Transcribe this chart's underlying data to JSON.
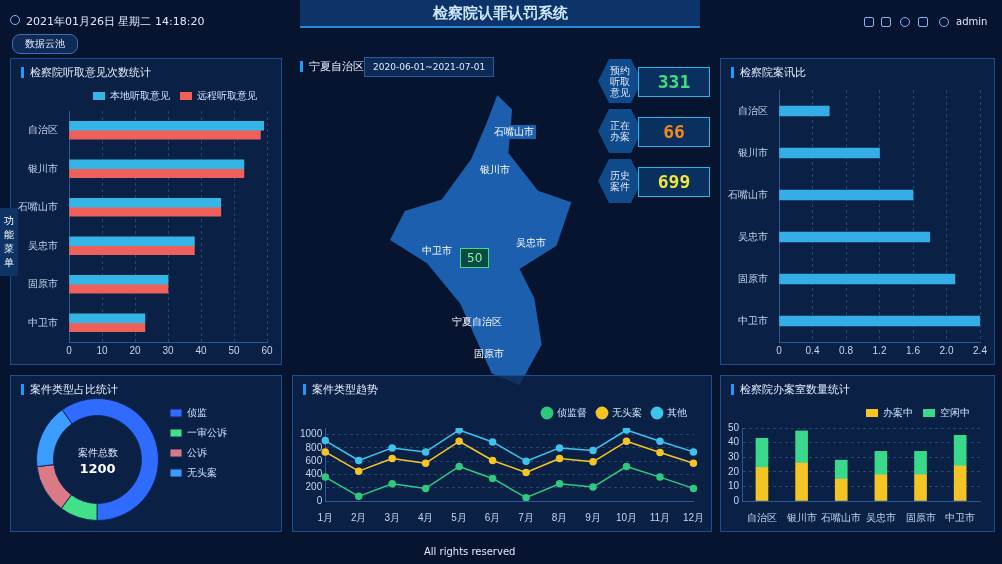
{
  "chart_data": [
    {
      "type": "other",
      "title": "检察院认罪认罚系统",
      "annotations": [
        "2021年01月26日  星期二  14:18:20",
        "数据云池",
        "功能菜单",
        "admin",
        "All rights reserved"
      ]
    },
    {
      "type": "bar",
      "orientation": "horizontal",
      "title": "检察院听取意见次数统计",
      "categories": [
        "自治区",
        "银川市",
        "石嘴山市",
        "吴忠市",
        "固原市",
        "中卫市"
      ],
      "series": [
        {
          "name": "本地听取意见",
          "color": "#33b5e5",
          "values": [
            59,
            53,
            46,
            38,
            30,
            23
          ]
        },
        {
          "name": "远程听取意见",
          "color": "#f0605a",
          "values": [
            58,
            53,
            46,
            38,
            30,
            23
          ]
        }
      ],
      "xlim": [
        0,
        60
      ],
      "xticks": [
        0,
        10,
        20,
        30,
        40,
        50,
        60
      ],
      "grid": "x",
      "legend": "top right"
    },
    {
      "type": "other",
      "title": "宁夏自治区",
      "subtitle": "2020-06-01~2021-07-01",
      "categories": [
        "预约听取意见",
        "正在办案",
        "历史案件"
      ],
      "values": [
        331,
        66,
        699
      ],
      "data_labels": true,
      "annotations": [
        "石嘴山市",
        "银川市",
        "中卫市",
        "吴忠市",
        "50",
        "宁夏自治区",
        "固原市"
      ]
    },
    {
      "type": "bar",
      "orientation": "horizontal",
      "title": "检察院案讯比",
      "categories": [
        "自治区",
        "银川市",
        "石嘴山市",
        "吴忠市",
        "固原市",
        "中卫市"
      ],
      "series": [
        {
          "color": "#35aee8",
          "values": [
            0.6,
            1.2,
            1.6,
            1.8,
            2.1,
            2.4
          ]
        }
      ],
      "xlim": [
        0,
        2.4
      ],
      "xticks": [
        0,
        0.4,
        0.8,
        1.2,
        {
          "value": 2,
          "label": "2.0"
        },
        1.6,
        2.4
      ],
      "grid": "x"
    },
    {
      "type": "donut",
      "title": "案件类型占比统计",
      "categories": [
        "侦监",
        "一审公诉",
        "公诉",
        "无头案"
      ],
      "values": [
        60,
        10,
        13,
        17
      ],
      "colors": [
        "#2f6bff",
        "#43e08a",
        "#d97a86",
        "#3c9cff"
      ],
      "legend": "right",
      "annotations": [
        "案件总数",
        "1200"
      ]
    },
    {
      "type": "line",
      "title": "案件类型趋势",
      "categories": [
        "1月",
        "2月",
        "3月",
        "4月",
        "5月",
        "6月",
        "7月",
        "8月",
        "9月",
        "10月",
        "11月",
        "12月"
      ],
      "series": [
        {
          "name": "侦监督",
          "color": "#2fc97e",
          "values": [
            360,
            70,
            260,
            190,
            520,
            340,
            50,
            260,
            210,
            520,
            360,
            190
          ]
        },
        {
          "name": "无头案",
          "color": "#f5c623",
          "values": [
            740,
            450,
            640,
            570,
            900,
            610,
            430,
            640,
            590,
            900,
            730,
            570
          ]
        },
        {
          "name": "其他",
          "color": "#3ec3ea",
          "values": [
            910,
            610,
            800,
            740,
            1070,
            890,
            600,
            800,
            760,
            1070,
            900,
            740
          ]
        }
      ],
      "ylim": [
        0,
        1100
      ],
      "yticks": [
        0,
        200,
        400,
        600,
        800,
        1000
      ],
      "grid": "y",
      "legend": "top right",
      "marker": "circle"
    },
    {
      "type": "bar",
      "stacked": true,
      "title": "检察院办案室数量统计",
      "categories": [
        "自治区",
        "银川市",
        "石嘴山市",
        "吴忠市",
        "固原市",
        "中卫市"
      ],
      "series": [
        {
          "name": "办案中",
          "color": "#f2c424",
          "values": [
            23,
            26,
            15,
            18,
            18,
            24
          ]
        },
        {
          "name": "空闲中",
          "color": "#3ad88a",
          "values": [
            20,
            22,
            13,
            16,
            16,
            21
          ]
        }
      ],
      "ylim": [
        0,
        50
      ],
      "yticks": [
        0,
        10,
        20,
        30,
        40,
        50
      ],
      "grid": "y",
      "legend": "top right"
    }
  ]
}
